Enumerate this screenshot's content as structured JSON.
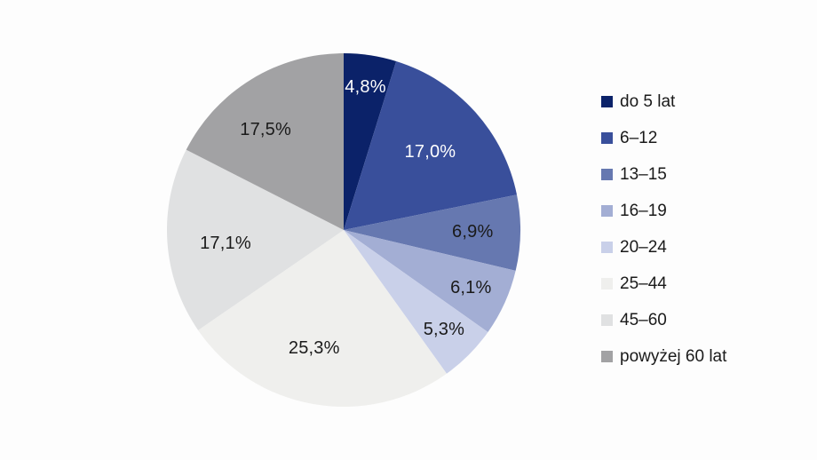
{
  "chart_data": {
    "type": "pie",
    "title": "",
    "legend_position": "right",
    "start_angle_deg": 0,
    "direction": "clockwise",
    "labels": [
      "do 5 lat",
      "6–12",
      "13–15",
      "16–19",
      "20–24",
      "25–44",
      "45–60",
      "powyżej 60 lat"
    ],
    "values": [
      4.8,
      17.0,
      6.9,
      6.1,
      5.3,
      25.3,
      17.1,
      17.5
    ],
    "value_labels": [
      "4,8%",
      "17,0%",
      "6,9%",
      "6,1%",
      "5,3%",
      "25,3%",
      "17,1%",
      "17,5%"
    ],
    "colors": [
      "#0b2269",
      "#394f9b",
      "#6678b0",
      "#a3aed4",
      "#c9d0e9",
      "#efefed",
      "#e0e1e2",
      "#a2a2a4"
    ],
    "value_label_colors": [
      "#ffffff",
      "#ffffff",
      "#1a1a1a",
      "#1a1a1a",
      "#1a1a1a",
      "#1a1a1a",
      "#1a1a1a",
      "#1a1a1a"
    ],
    "background_color": "#fdfdfd"
  }
}
